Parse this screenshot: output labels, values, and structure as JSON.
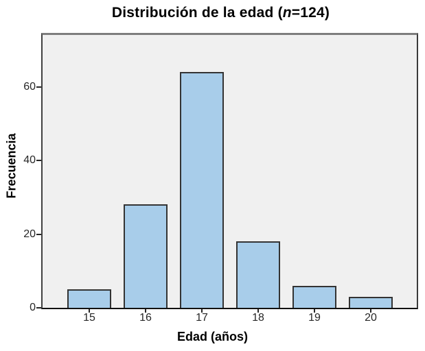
{
  "title": {
    "prefix": "Distribución de la edad (",
    "n_symbol": "n",
    "suffix": "=124)"
  },
  "chart_data": {
    "type": "bar",
    "title": "Distribución de la edad (n=124)",
    "categories": [
      "15",
      "16",
      "17",
      "18",
      "19",
      "20"
    ],
    "values": [
      5,
      28,
      64,
      18,
      6,
      3
    ],
    "total_n": 124,
    "xlabel": "Edad (años)",
    "ylabel": "Frecuencia",
    "yticks": [
      0,
      20,
      40,
      60
    ],
    "ylim": [
      0,
      74
    ],
    "grid": false,
    "legend": "none",
    "colors": {
      "bar_fill": "#a8cdea",
      "bar_border": "#333333",
      "plot_background": "#f0f0f0",
      "page_background": "#ffffff",
      "text": "#000000",
      "tick_text": "#262626"
    }
  }
}
